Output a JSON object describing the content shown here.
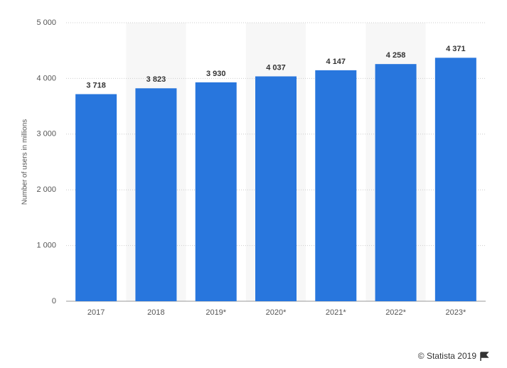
{
  "chart_data": {
    "type": "bar",
    "y_label": "Number of users in millions",
    "categories": [
      "2017",
      "2018",
      "2019*",
      "2020*",
      "2021*",
      "2022*",
      "2023*"
    ],
    "values": [
      3718,
      3823,
      3930,
      4037,
      4147,
      4258,
      4371
    ],
    "value_labels": [
      "3 718",
      "3 823",
      "3 930",
      "4 037",
      "4 147",
      "4 258",
      "4 371"
    ],
    "color": "#2876dd",
    "ylim": [
      0,
      5000
    ],
    "yticks": [
      0,
      {
        "value": 1000,
        "label": "1 000"
      },
      {
        "value": 2000,
        "label": "2 000"
      },
      {
        "value": 3000,
        "label": "3 000"
      },
      {
        "value": 4000,
        "label": "4 000"
      },
      {
        "value": 5000,
        "label": "5 000"
      }
    ],
    "grid": true,
    "credit": "© Statista 2019"
  }
}
